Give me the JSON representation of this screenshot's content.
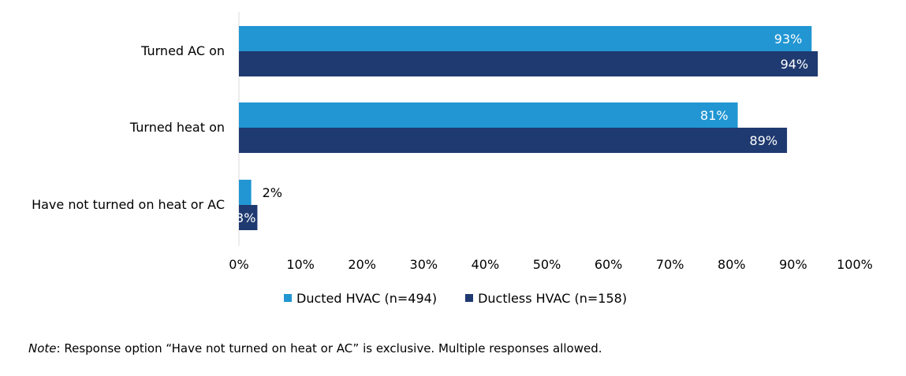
{
  "chart_data": {
    "type": "bar",
    "orientation": "horizontal",
    "categories": [
      "Turned AC on",
      "Turned heat on",
      "Have not turned on heat or AC"
    ],
    "series": [
      {
        "name": "Ducted HVAC (n=494)",
        "values": [
          93,
          81,
          2
        ],
        "labels": [
          "93%",
          "81%",
          "2%"
        ],
        "color": "#2196d3"
      },
      {
        "name": "Ductless HVAC (n=158)",
        "values": [
          94,
          89,
          3
        ],
        "labels": [
          "94%",
          "89%",
          "3%"
        ],
        "color": "#1f3a70"
      }
    ],
    "xlim": [
      0,
      100
    ],
    "xticks": [
      "0%",
      "10%",
      "20%",
      "30%",
      "40%",
      "50%",
      "60%",
      "70%",
      "80%",
      "90%",
      "100%"
    ],
    "grid": false,
    "legend_position": "bottom"
  },
  "note": {
    "key": "Note",
    "text": ": Response option “Have not turned on heat or AC” is exclusive. Multiple responses allowed."
  }
}
